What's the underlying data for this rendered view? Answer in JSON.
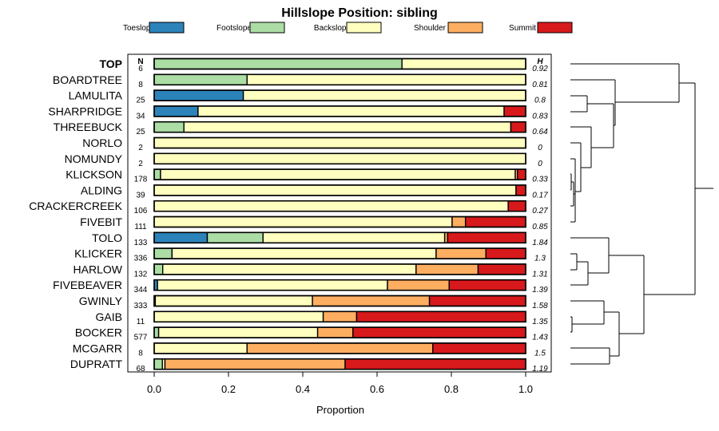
{
  "chart_data": {
    "type": "bar",
    "stacked": true,
    "orientation": "horizontal",
    "title": "Hillslope Position: sibling",
    "xlabel": "Proportion",
    "xlim": [
      0,
      1
    ],
    "xticks": [
      "0.0",
      "0.2",
      "0.4",
      "0.6",
      "0.8",
      "1.0"
    ],
    "n_header": "N",
    "h_header": "H",
    "series": [
      {
        "name": "Toeslope",
        "color": "#2b83ba"
      },
      {
        "name": "Footslope",
        "color": "#abdda4"
      },
      {
        "name": "Backslope",
        "color": "#ffffbf"
      },
      {
        "name": "Shoulder",
        "color": "#fdae61"
      },
      {
        "name": "Summit",
        "color": "#d7191c"
      }
    ],
    "rows": [
      {
        "name": "TOP",
        "n": "6",
        "h": "0.92",
        "values": [
          0,
          0.667,
          0.333,
          0,
          0
        ]
      },
      {
        "name": "BOARDTREE",
        "n": "8",
        "h": "0.81",
        "values": [
          0,
          0.25,
          0.75,
          0,
          0
        ]
      },
      {
        "name": "LAMULITA",
        "n": "25",
        "h": "0.8",
        "values": [
          0.24,
          0,
          0.76,
          0,
          0
        ]
      },
      {
        "name": "SHARPRIDGE",
        "n": "34",
        "h": "0.83",
        "values": [
          0.118,
          0,
          0.824,
          0,
          0.058
        ]
      },
      {
        "name": "THREEBUCK",
        "n": "25",
        "h": "0.64",
        "values": [
          0,
          0.08,
          0.88,
          0,
          0.04
        ]
      },
      {
        "name": "NORLO",
        "n": "2",
        "h": "0",
        "values": [
          0,
          0,
          1.0,
          0,
          0
        ]
      },
      {
        "name": "NOMUNDY",
        "n": "2",
        "h": "0",
        "values": [
          0,
          0,
          1.0,
          0,
          0
        ]
      },
      {
        "name": "KLICKSON",
        "n": "178",
        "h": "0.33",
        "values": [
          0,
          0.017,
          0.955,
          0.006,
          0.022
        ]
      },
      {
        "name": "ALDING",
        "n": "39",
        "h": "0.17",
        "values": [
          0,
          0,
          0.974,
          0,
          0.026
        ]
      },
      {
        "name": "CRACKERCREEK",
        "n": "106",
        "h": "0.27",
        "values": [
          0,
          0,
          0.953,
          0,
          0.047
        ]
      },
      {
        "name": "FIVEBIT",
        "n": "111",
        "h": "0.85",
        "values": [
          0,
          0,
          0.802,
          0.036,
          0.162
        ]
      },
      {
        "name": "TOLO",
        "n": "133",
        "h": "1.84",
        "values": [
          0.143,
          0.15,
          0.489,
          0.008,
          0.21
        ]
      },
      {
        "name": "KLICKER",
        "n": "336",
        "h": "1.3",
        "values": [
          0,
          0.048,
          0.711,
          0.134,
          0.107
        ]
      },
      {
        "name": "HARLOW",
        "n": "132",
        "h": "1.31",
        "values": [
          0,
          0.023,
          0.682,
          0.167,
          0.128
        ]
      },
      {
        "name": "FIVEBEAVER",
        "n": "344",
        "h": "1.39",
        "values": [
          0.009,
          0,
          0.619,
          0.166,
          0.206
        ]
      },
      {
        "name": "GWINLY",
        "n": "333",
        "h": "1.58",
        "values": [
          0,
          0.003,
          0.423,
          0.315,
          0.259
        ]
      },
      {
        "name": "GAIB",
        "n": "11",
        "h": "1.35",
        "values": [
          0,
          0,
          0.455,
          0.09,
          0.455
        ]
      },
      {
        "name": "BOCKER",
        "n": "577",
        "h": "1.43",
        "values": [
          0,
          0.012,
          0.428,
          0.095,
          0.465
        ]
      },
      {
        "name": "MCGARR",
        "n": "8",
        "h": "1.5",
        "values": [
          0,
          0,
          0.25,
          0.5,
          0.25
        ]
      },
      {
        "name": "DUPRATT",
        "n": "68",
        "h": "1.19",
        "values": [
          0,
          0.022,
          0.007,
          0.485,
          0.486
        ]
      }
    ]
  }
}
